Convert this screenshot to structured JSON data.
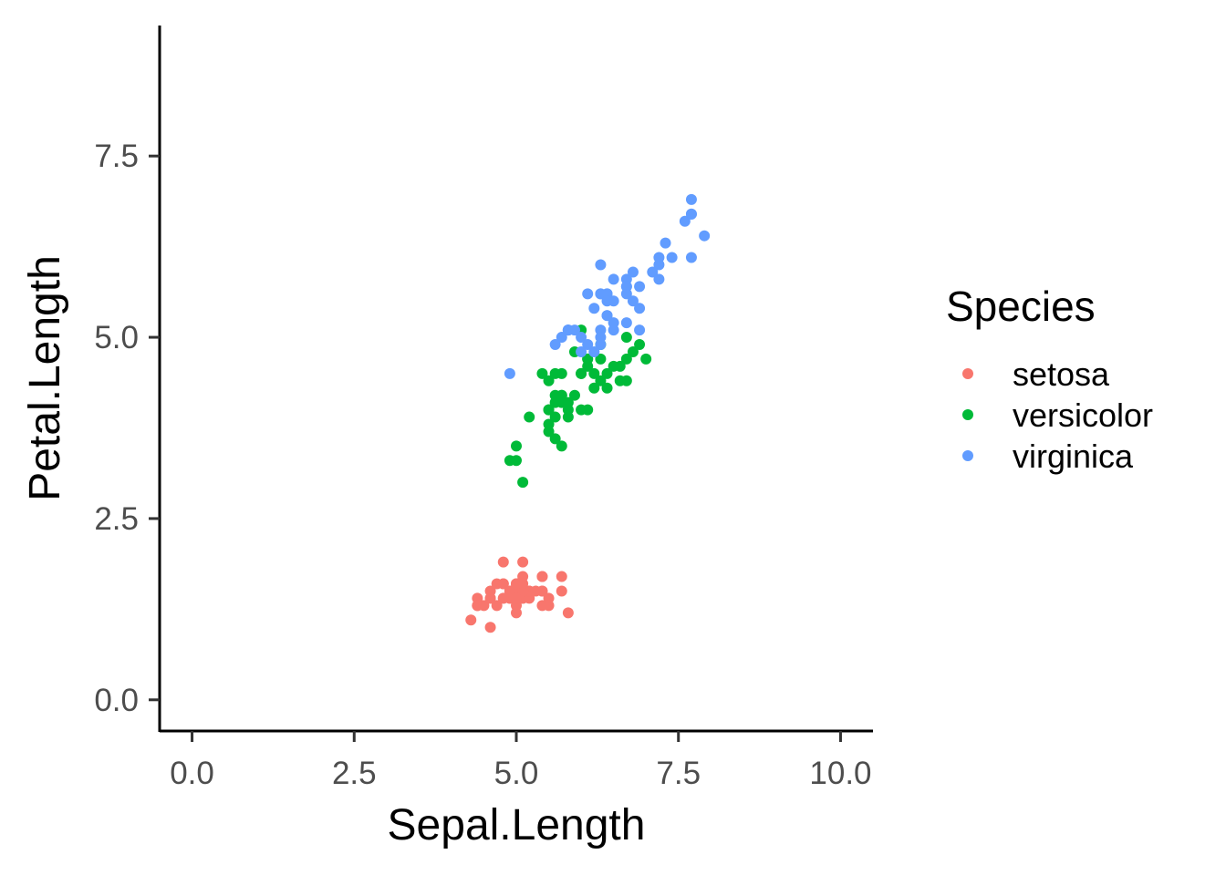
{
  "chart_data": {
    "type": "scatter",
    "title": "",
    "xlabel": "Sepal.Length",
    "ylabel": "Petal.Length",
    "xlim": [
      -0.5,
      10.5
    ],
    "ylim": [
      -0.43,
      9.3
    ],
    "x_ticks": [
      0,
      2.5,
      5,
      7.5,
      10
    ],
    "x_tick_labels": [
      "0.0",
      "2.5",
      "5.0",
      "7.5",
      "10.0"
    ],
    "y_ticks": [
      0,
      2.5,
      5,
      7.5
    ],
    "y_tick_labels": [
      "0.0",
      "2.5",
      "5.0",
      "7.5"
    ],
    "grid": false,
    "legend": {
      "title": "Species",
      "position": "right",
      "entries": [
        "setosa",
        "versicolor",
        "virginica"
      ]
    },
    "series": [
      {
        "name": "setosa",
        "color": "#F8766D",
        "points": [
          [
            5.1,
            1.4
          ],
          [
            4.9,
            1.4
          ],
          [
            4.7,
            1.3
          ],
          [
            4.6,
            1.5
          ],
          [
            5.0,
            1.4
          ],
          [
            5.4,
            1.7
          ],
          [
            4.6,
            1.4
          ],
          [
            5.0,
            1.5
          ],
          [
            4.4,
            1.4
          ],
          [
            4.9,
            1.5
          ],
          [
            5.4,
            1.5
          ],
          [
            4.8,
            1.6
          ],
          [
            4.8,
            1.4
          ],
          [
            4.3,
            1.1
          ],
          [
            5.8,
            1.2
          ],
          [
            5.7,
            1.5
          ],
          [
            5.4,
            1.3
          ],
          [
            5.1,
            1.4
          ],
          [
            5.7,
            1.7
          ],
          [
            5.1,
            1.5
          ],
          [
            5.4,
            1.7
          ],
          [
            5.1,
            1.5
          ],
          [
            4.6,
            1.0
          ],
          [
            5.1,
            1.7
          ],
          [
            4.8,
            1.9
          ],
          [
            5.0,
            1.6
          ],
          [
            5.0,
            1.6
          ],
          [
            5.2,
            1.5
          ],
          [
            5.2,
            1.4
          ],
          [
            4.7,
            1.6
          ],
          [
            4.8,
            1.6
          ],
          [
            5.4,
            1.5
          ],
          [
            5.2,
            1.5
          ],
          [
            5.5,
            1.4
          ],
          [
            4.9,
            1.5
          ],
          [
            5.0,
            1.2
          ],
          [
            5.5,
            1.3
          ],
          [
            4.9,
            1.4
          ],
          [
            4.4,
            1.3
          ],
          [
            5.1,
            1.5
          ],
          [
            5.0,
            1.3
          ],
          [
            4.5,
            1.3
          ],
          [
            4.4,
            1.3
          ],
          [
            5.0,
            1.6
          ],
          [
            5.1,
            1.9
          ],
          [
            4.8,
            1.4
          ],
          [
            5.1,
            1.6
          ],
          [
            4.6,
            1.4
          ],
          [
            5.3,
            1.5
          ],
          [
            5.0,
            1.4
          ]
        ]
      },
      {
        "name": "versicolor",
        "color": "#00BA38",
        "points": [
          [
            7.0,
            4.7
          ],
          [
            6.4,
            4.5
          ],
          [
            6.9,
            4.9
          ],
          [
            5.5,
            4.0
          ],
          [
            6.5,
            4.6
          ],
          [
            5.7,
            4.5
          ],
          [
            6.3,
            4.7
          ],
          [
            4.9,
            3.3
          ],
          [
            6.6,
            4.6
          ],
          [
            5.2,
            3.9
          ],
          [
            5.0,
            3.5
          ],
          [
            5.9,
            4.2
          ],
          [
            6.0,
            4.0
          ],
          [
            6.1,
            4.7
          ],
          [
            5.6,
            3.6
          ],
          [
            6.7,
            4.4
          ],
          [
            5.6,
            4.5
          ],
          [
            5.8,
            4.1
          ],
          [
            6.2,
            4.5
          ],
          [
            5.6,
            3.9
          ],
          [
            5.9,
            4.8
          ],
          [
            6.1,
            4.0
          ],
          [
            6.3,
            4.9
          ],
          [
            6.1,
            4.7
          ],
          [
            6.4,
            4.3
          ],
          [
            6.6,
            4.4
          ],
          [
            6.8,
            4.8
          ],
          [
            6.7,
            5.0
          ],
          [
            6.0,
            4.5
          ],
          [
            5.7,
            3.5
          ],
          [
            5.5,
            3.8
          ],
          [
            5.5,
            3.7
          ],
          [
            5.8,
            3.9
          ],
          [
            6.0,
            5.1
          ],
          [
            5.4,
            4.5
          ],
          [
            6.0,
            4.5
          ],
          [
            6.7,
            4.7
          ],
          [
            6.3,
            4.4
          ],
          [
            5.6,
            4.1
          ],
          [
            5.5,
            4.0
          ],
          [
            5.5,
            4.4
          ],
          [
            6.1,
            4.6
          ],
          [
            5.8,
            4.0
          ],
          [
            5.0,
            3.3
          ],
          [
            5.6,
            4.2
          ],
          [
            5.7,
            4.2
          ],
          [
            5.7,
            4.2
          ],
          [
            6.2,
            4.3
          ],
          [
            5.1,
            3.0
          ],
          [
            5.7,
            4.1
          ]
        ]
      },
      {
        "name": "virginica",
        "color": "#619CFF",
        "points": [
          [
            6.3,
            6.0
          ],
          [
            5.8,
            5.1
          ],
          [
            7.1,
            5.9
          ],
          [
            6.3,
            5.6
          ],
          [
            6.5,
            5.8
          ],
          [
            7.6,
            6.6
          ],
          [
            4.9,
            4.5
          ],
          [
            7.3,
            6.3
          ],
          [
            6.7,
            5.8
          ],
          [
            7.2,
            6.1
          ],
          [
            6.5,
            5.1
          ],
          [
            6.4,
            5.3
          ],
          [
            6.8,
            5.5
          ],
          [
            5.7,
            5.0
          ],
          [
            5.8,
            5.1
          ],
          [
            6.4,
            5.3
          ],
          [
            6.5,
            5.5
          ],
          [
            7.7,
            6.7
          ],
          [
            7.7,
            6.9
          ],
          [
            6.0,
            5.0
          ],
          [
            6.9,
            5.7
          ],
          [
            5.6,
            4.9
          ],
          [
            7.7,
            6.7
          ],
          [
            6.3,
            4.9
          ],
          [
            6.7,
            5.7
          ],
          [
            7.2,
            6.0
          ],
          [
            6.2,
            4.8
          ],
          [
            6.1,
            4.9
          ],
          [
            6.4,
            5.6
          ],
          [
            7.2,
            5.8
          ],
          [
            7.4,
            6.1
          ],
          [
            7.9,
            6.4
          ],
          [
            6.4,
            5.6
          ],
          [
            6.3,
            5.1
          ],
          [
            6.1,
            5.6
          ],
          [
            7.7,
            6.1
          ],
          [
            6.3,
            5.6
          ],
          [
            6.4,
            5.5
          ],
          [
            6.0,
            4.8
          ],
          [
            6.9,
            5.4
          ],
          [
            6.7,
            5.6
          ],
          [
            6.9,
            5.1
          ],
          [
            5.8,
            5.1
          ],
          [
            6.8,
            5.9
          ],
          [
            6.7,
            5.7
          ],
          [
            6.7,
            5.2
          ],
          [
            6.3,
            5.0
          ],
          [
            6.5,
            5.2
          ],
          [
            6.2,
            5.4
          ],
          [
            5.9,
            5.1
          ]
        ]
      }
    ]
  }
}
